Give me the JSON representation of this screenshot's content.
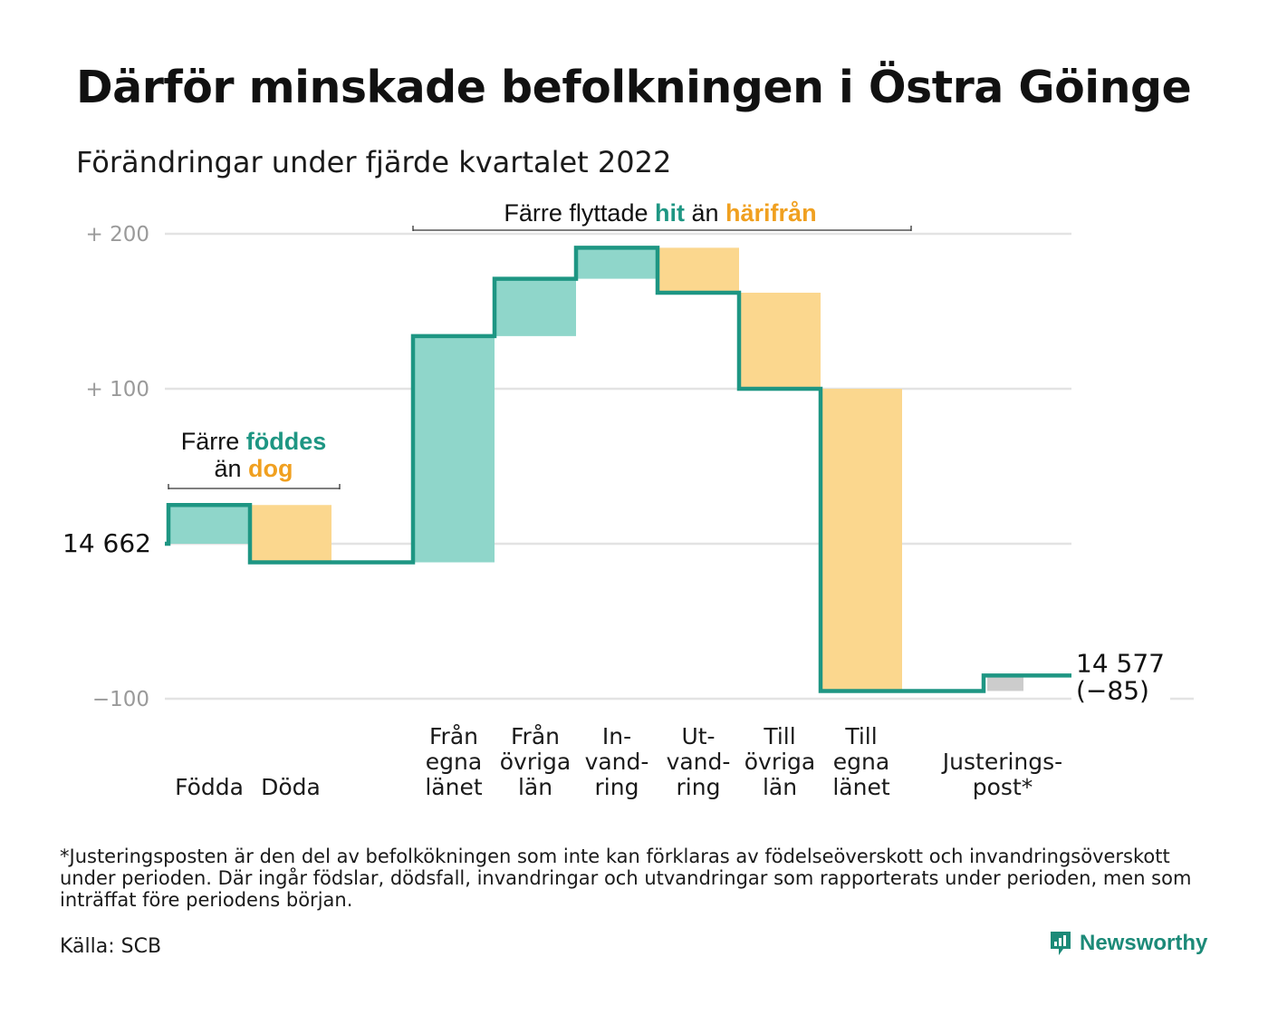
{
  "title": "Därför minskade befolkningen i Östra Göinge",
  "subtitle": "Förändringar under fjärde kvartalet 2022",
  "colors": {
    "increase": "#8fd6ca",
    "decrease": "#fbd78e",
    "adjustment": "#cccccc",
    "line": "#1e9683",
    "accent_hit": "#1e9683",
    "accent_harifran": "#f0a020",
    "grid": "#e3e3e3"
  },
  "annotations": {
    "migration": {
      "prefix": "Färre flyttade ",
      "hit": "hit",
      "middle": " än ",
      "harifran": "härifrån"
    },
    "natural": {
      "line1_prefix": "Färre ",
      "foddes": "föddes",
      "line2_prefix": "än ",
      "dog": "dog"
    }
  },
  "chart_data": {
    "type": "waterfall",
    "title": "Därför minskade befolkningen i Östra Göinge",
    "subtitle": "Förändringar under fjärde kvartalet 2022",
    "start_value": 14662,
    "start_label": "14 662",
    "end_value": 14577,
    "end_label": "14 577",
    "end_change_label": "(−85)",
    "yticks": [
      {
        "value": 200,
        "label": "+ 200"
      },
      {
        "value": 100,
        "label": "+ 100"
      },
      {
        "value": -100,
        "label": "−100"
      }
    ],
    "ylim": [
      -100,
      200
    ],
    "grid": true,
    "steps": [
      {
        "key": "fodda",
        "label_lines": [
          "Födda"
        ],
        "change": 25
      },
      {
        "key": "doda",
        "label_lines": [
          "Döda"
        ],
        "change": -37
      },
      {
        "key": "gap",
        "label_lines": [],
        "change": 0
      },
      {
        "key": "fran-egna-lanet",
        "label_lines": [
          "Från",
          "egna",
          "länet"
        ],
        "change": 146
      },
      {
        "key": "fran-ovriga-lan",
        "label_lines": [
          "Från",
          "övriga",
          "län"
        ],
        "change": 37
      },
      {
        "key": "invandring",
        "label_lines": [
          "In-",
          "vand-",
          "ring"
        ],
        "change": 20
      },
      {
        "key": "utvandring",
        "label_lines": [
          "Ut-",
          "vand-",
          "ring"
        ],
        "change": -29
      },
      {
        "key": "till-ovriga-lan",
        "label_lines": [
          "Till",
          "övriga",
          "län"
        ],
        "change": -62
      },
      {
        "key": "till-egna-lanet",
        "label_lines": [
          "Till",
          "egna",
          "länet"
        ],
        "change": -195
      },
      {
        "key": "gap2",
        "label_lines": [],
        "change": 0
      },
      {
        "key": "justeringspost",
        "label_lines": [
          "Justerings-",
          "post*"
        ],
        "change": 10
      }
    ]
  },
  "footnote": "*Justeringsposten är den del av befolkökningen som inte kan förklaras av födelseöverskott och invandringsöverskott under perioden. Där ingår födslar, dödsfall, invandringar och utvandringar som rapporterats under perioden, men som inträffat före periodens början.",
  "source": "Källa: SCB",
  "brand": "Newsworthy"
}
